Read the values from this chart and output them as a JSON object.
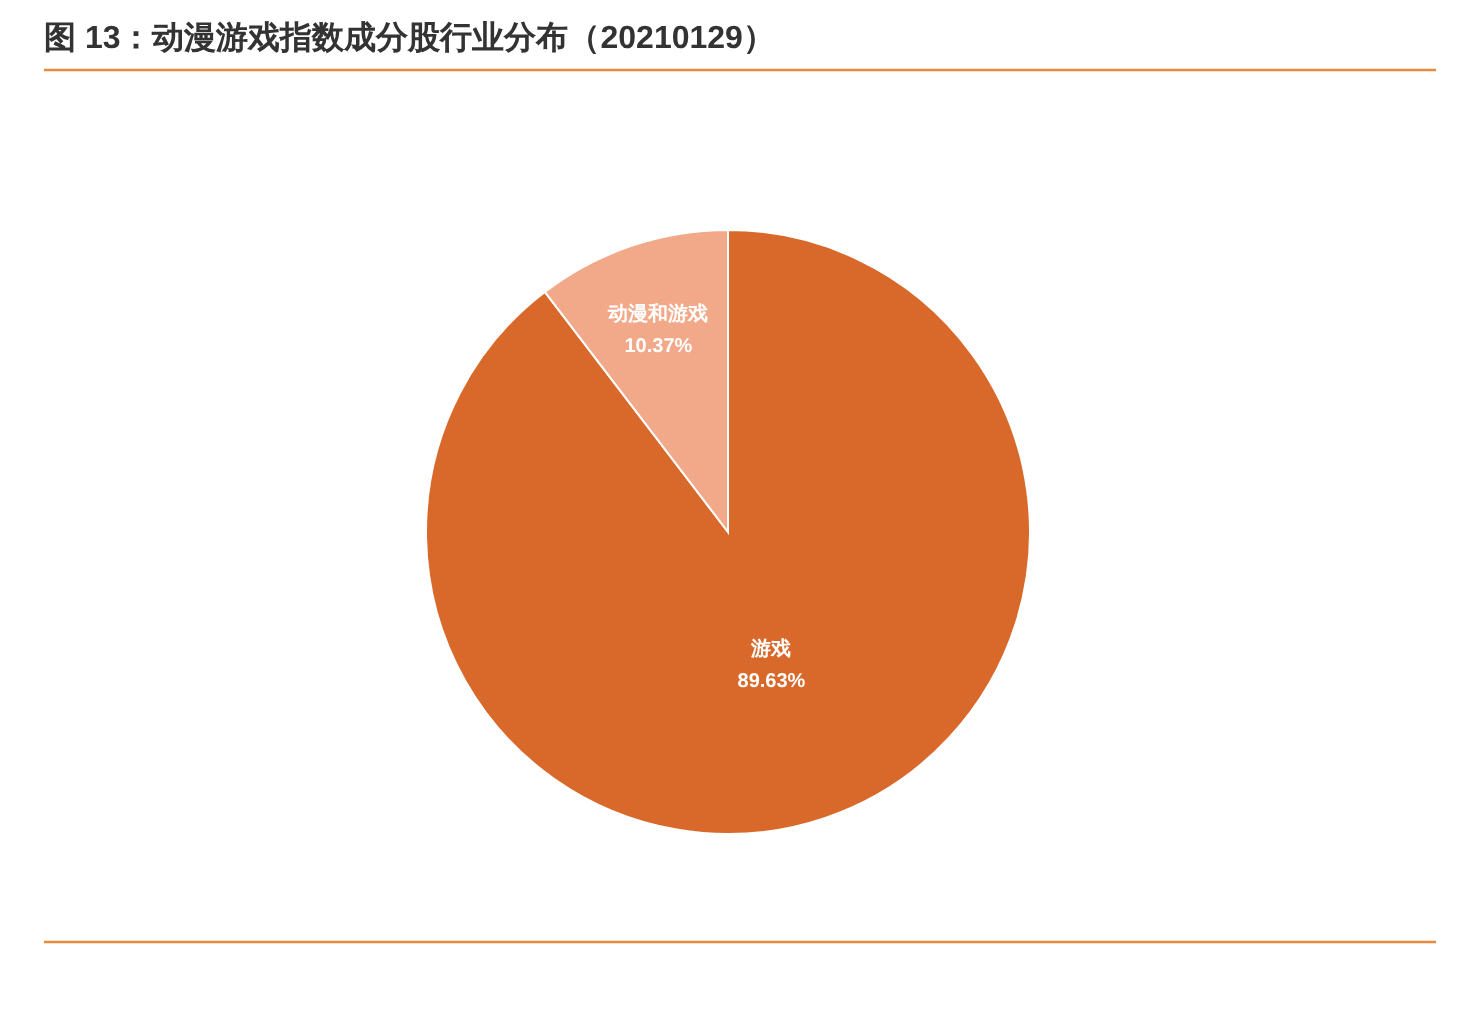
{
  "chart_data": {
    "type": "pie",
    "title": "图 13：动漫游戏指数成分股行业分布（20210129）",
    "categories": [
      "游戏",
      "动漫和游戏"
    ],
    "values": [
      89.63,
      10.37
    ],
    "colors": [
      "#d9692a",
      "#f2a98a"
    ],
    "value_labels": [
      "89.63%",
      "10.37%"
    ]
  }
}
